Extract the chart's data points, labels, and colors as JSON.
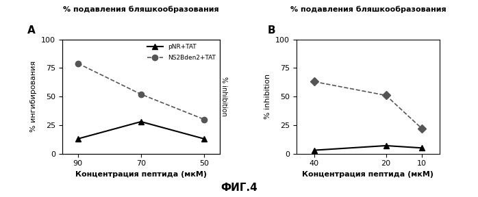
{
  "title": "% подавления бляшкообразования",
  "fig_label": "ФИГ.4",
  "panel_A": {
    "label": "A",
    "x": [
      90,
      70,
      50
    ],
    "x_ticks": [
      90,
      70,
      50
    ],
    "x_label": "Концентрация пептида (мкМ)",
    "y_label": "% ингибирования",
    "y_label_right": "% inhibition",
    "ylim": [
      0,
      100
    ],
    "yticks": [
      0,
      25,
      50,
      75,
      100
    ],
    "series": [
      {
        "name": "pNR+TAT",
        "y": [
          13,
          28,
          13
        ],
        "color": "#000000",
        "linestyle": "-",
        "marker": "^",
        "markersize": 6,
        "linewidth": 1.5
      },
      {
        "name": "NS2Bden2+TAT",
        "y": [
          79,
          52,
          30
        ],
        "color": "#555555",
        "linestyle": "--",
        "marker": "o",
        "markersize": 6,
        "linewidth": 1.2
      }
    ]
  },
  "panel_B": {
    "label": "B",
    "x": [
      40,
      20,
      10
    ],
    "x_ticks": [
      40,
      20,
      10
    ],
    "x_label": "Концентрация пептида (мкМ)",
    "y_label": "% inhibition",
    "ylim": [
      0,
      100
    ],
    "yticks": [
      0,
      25,
      50,
      75,
      100
    ],
    "series": [
      {
        "name": "pNR+TAT",
        "y": [
          3,
          7,
          5
        ],
        "color": "#000000",
        "linestyle": "-",
        "marker": "^",
        "markersize": 6,
        "linewidth": 1.5
      },
      {
        "name": "NS2Bden2+TAT",
        "y": [
          63,
          51,
          22
        ],
        "color": "#555555",
        "linestyle": "--",
        "marker": "D",
        "markersize": 6,
        "linewidth": 1.2
      }
    ]
  },
  "background_color": "#ffffff"
}
